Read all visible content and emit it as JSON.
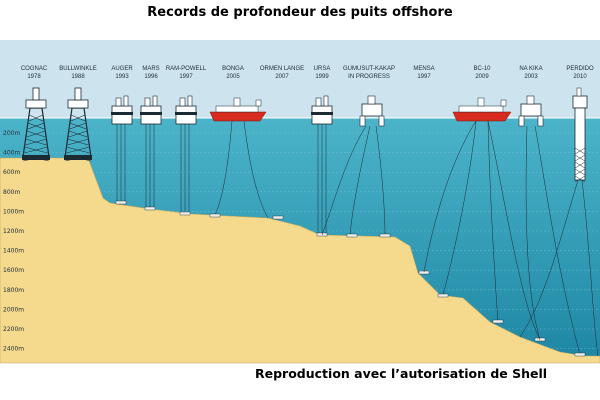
{
  "title": "Records de profondeur des puits offshore",
  "caption": "Reproduction avec l’autorisation de Shell",
  "depth_labels": [
    "200m",
    "400m",
    "600m",
    "800m",
    "1000m",
    "1200m",
    "1400m",
    "1600m",
    "1800m",
    "2000m",
    "2200m",
    "2400m"
  ],
  "platforms": [
    {
      "name": "COGNAC",
      "year": "1978",
      "icon": "jacket-platform-icon"
    },
    {
      "name": "BULLWINKLE",
      "year": "1988",
      "icon": "jacket-platform-icon"
    },
    {
      "name": "AUGER",
      "year": "1993",
      "icon": "tension-leg-platform-icon"
    },
    {
      "name": "MARS",
      "year": "1996",
      "icon": "tension-leg-platform-icon"
    },
    {
      "name": "RAM-POWELL",
      "year": "1997",
      "icon": "tension-leg-platform-icon"
    },
    {
      "name": "BONGA",
      "year": "2005",
      "icon": "fpso-ship-icon"
    },
    {
      "name": "ORMEN LANGE",
      "year": "2007",
      "icon": "subsea-template-icon"
    },
    {
      "name": "URSA",
      "year": "1999",
      "icon": "tension-leg-platform-icon"
    },
    {
      "name": "GUMUSUT-KAKAP",
      "year": "IN PROGRESS",
      "icon": "semi-submersible-icon"
    },
    {
      "name": "MENSA",
      "year": "1997",
      "icon": "subsea-tieback-icon"
    },
    {
      "name": "BC-10",
      "year": "2009",
      "icon": "fpso-ship-icon"
    },
    {
      "name": "NA KIKA",
      "year": "2003",
      "icon": "semi-submersible-icon"
    },
    {
      "name": "PERDIDO",
      "year": "2010",
      "icon": "spar-platform-icon"
    }
  ],
  "colors": {
    "sky": "#cde4ee",
    "sea_top": "#3aa7bf",
    "sea_bottom": "#1f8aa6",
    "seabed": "#f5d98c",
    "ship": "#d62b1e",
    "structure": "#ffffff",
    "outline": "#1b2a33"
  }
}
